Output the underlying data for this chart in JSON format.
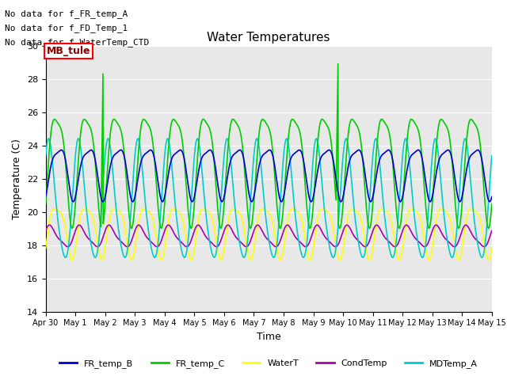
{
  "title": "Water Temperatures",
  "xlabel": "Time",
  "ylabel": "Temperature (C)",
  "ylim": [
    14,
    30
  ],
  "xlim_days": [
    0,
    15
  ],
  "x_tick_labels": [
    "Apr 30",
    "May 1",
    "May 2",
    "May 3",
    "May 4",
    "May 5",
    "May 6",
    "May 7",
    "May 8",
    "May 9",
    "May 10",
    "May 11",
    "May 12",
    "May 13",
    "May 14",
    "May 15"
  ],
  "no_data_texts": [
    "No data for f_FR_temp_A",
    "No data for f_FD_Temp_1",
    "No data for f_WaterTemp_CTD"
  ],
  "mb_tule_label": "MB_tule",
  "legend_entries": [
    "FR_temp_B",
    "FR_temp_C",
    "WaterT",
    "CondTemp",
    "MDTemp_A"
  ],
  "line_colors": {
    "FR_temp_B": "#0000cc",
    "FR_temp_C": "#00cc00",
    "WaterT": "#ffff00",
    "CondTemp": "#aa00aa",
    "MDTemp_A": "#00cccc"
  },
  "background_color": "#e8e8e8",
  "title_fontsize": 11,
  "axis_label_fontsize": 9,
  "tick_fontsize": 8,
  "nodata_fontsize": 8
}
